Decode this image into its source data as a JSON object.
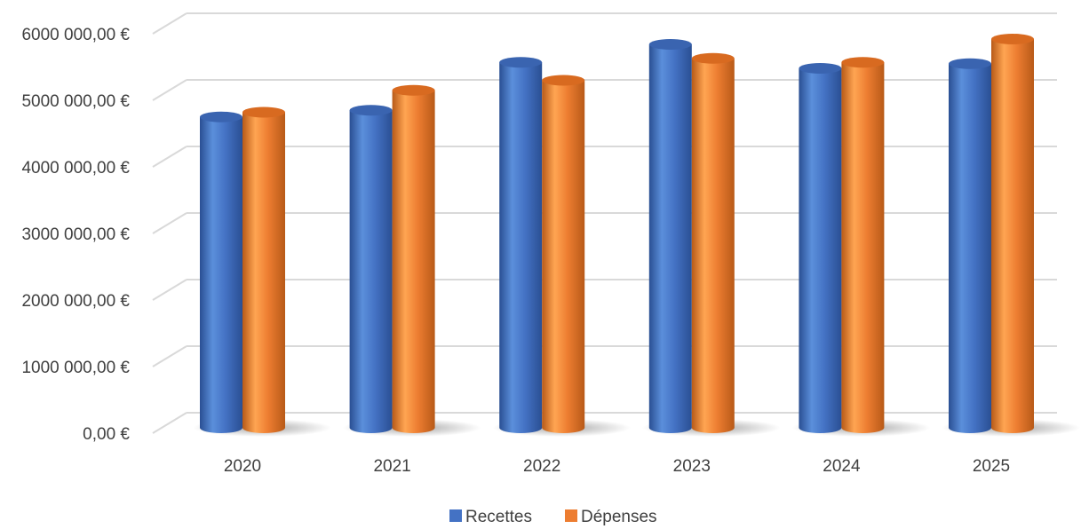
{
  "chart_data": {
    "type": "bar",
    "categories": [
      "2020",
      "2021",
      "2022",
      "2023",
      "2024",
      "2025"
    ],
    "series": [
      {
        "name": "Recettes",
        "values": [
          4750000,
          4850000,
          5570000,
          5840000,
          5480000,
          5550000
        ]
      },
      {
        "name": "Dépenses",
        "values": [
          4820000,
          5150000,
          5300000,
          5630000,
          5570000,
          5920000
        ]
      }
    ],
    "title": "",
    "xlabel": "",
    "ylabel": "",
    "ylim": [
      0,
      6000000
    ],
    "y_ticks": [
      {
        "value": 0,
        "label": "0,00 €"
      },
      {
        "value": 1000000,
        "label": "1000 000,00 €"
      },
      {
        "value": 2000000,
        "label": "2000 000,00 €"
      },
      {
        "value": 3000000,
        "label": "3000 000,00 €"
      },
      {
        "value": 4000000,
        "label": "4000 000,00 €"
      },
      {
        "value": 5000000,
        "label": "5000 000,00 €"
      },
      {
        "value": 6000000,
        "label": "6000 000,00 €"
      }
    ],
    "style": "3d-cylinder",
    "grid": true,
    "legend_position": "bottom",
    "colors": {
      "Recettes": {
        "light": "#5b8fdb",
        "mid": "#4472c4",
        "dark": "#2a4f93",
        "top": "#3a64b0"
      },
      "Dépenses": {
        "light": "#ffa552",
        "mid": "#ed7d31",
        "dark": "#b85a18",
        "top": "#d86a20"
      },
      "grid": "#d9d9d9",
      "text": "#404040"
    }
  }
}
